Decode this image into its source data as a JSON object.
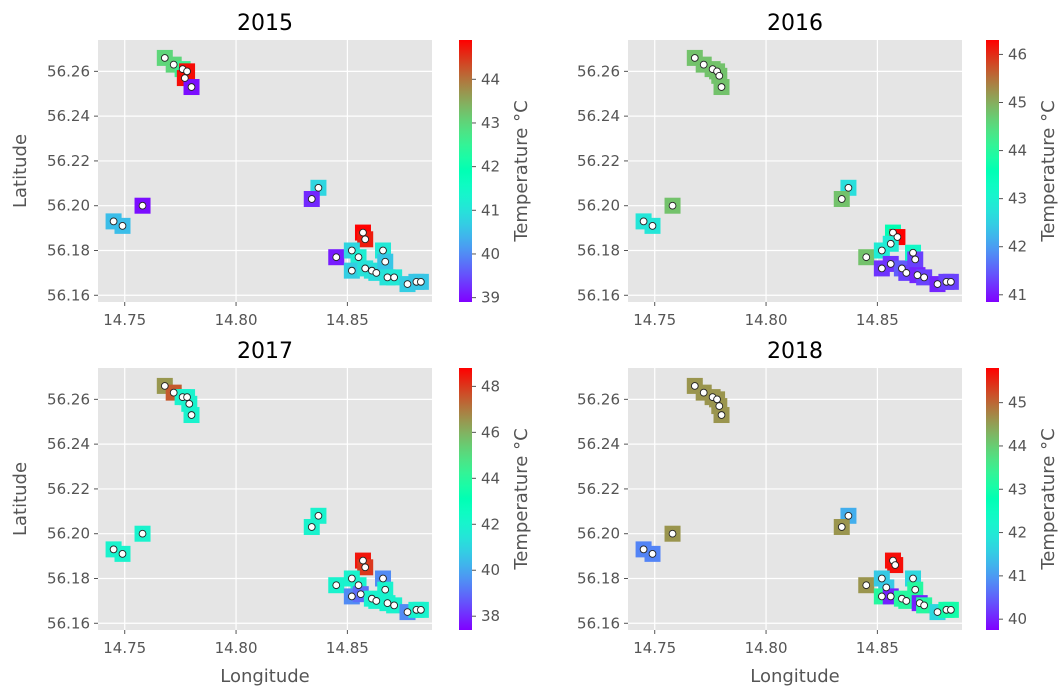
{
  "figure": {
    "xlabel": "Longitude",
    "ylabel": "Latitude",
    "colorbar_label": "Temperature °C",
    "xlim": [
      14.738,
      14.888
    ],
    "ylim": [
      56.157,
      56.274
    ],
    "x_ticks": [
      14.75,
      14.8,
      14.85
    ],
    "x_tick_labels": [
      "14.75",
      "14.80",
      "14.85"
    ],
    "y_ticks": [
      56.16,
      56.18,
      56.2,
      56.22,
      56.24,
      56.26
    ],
    "y_tick_labels": [
      "56.16",
      "56.18",
      "56.20",
      "56.22",
      "56.24",
      "56.26"
    ],
    "colormap": "rainbow",
    "panel_bg": "#e5e5e5",
    "grid_color": "#ffffff",
    "grid": true
  },
  "panels": [
    {
      "title": "2015",
      "colorbar": {
        "min": 38.9,
        "max": 44.9,
        "ticks": [
          39,
          40,
          41,
          42,
          43,
          44
        ],
        "tick_labels": [
          "39",
          "40",
          "41",
          "42",
          "43",
          "44"
        ]
      }
    },
    {
      "title": "2016",
      "colorbar": {
        "min": 40.85,
        "max": 46.3,
        "ticks": [
          41,
          42,
          43,
          44,
          45,
          46
        ],
        "tick_labels": [
          "41",
          "42",
          "43",
          "44",
          "45",
          "46"
        ]
      }
    },
    {
      "title": "2017",
      "colorbar": {
        "min": 37.4,
        "max": 48.8,
        "ticks": [
          38,
          40,
          42,
          44,
          46,
          48
        ],
        "tick_labels": [
          "38",
          "40",
          "42",
          "44",
          "46",
          "48"
        ]
      }
    },
    {
      "title": "2018",
      "colorbar": {
        "min": 39.75,
        "max": 45.8,
        "ticks": [
          40,
          41,
          42,
          43,
          44,
          45
        ],
        "tick_labels": [
          "40",
          "41",
          "42",
          "43",
          "44",
          "45"
        ]
      }
    }
  ],
  "chart_data": [
    {
      "type": "scatter",
      "title": "2015",
      "xlabel": "",
      "ylabel": "Latitude",
      "color_label": "Temperature °C",
      "xlim": [
        14.738,
        14.888
      ],
      "ylim": [
        56.157,
        56.274
      ],
      "points": [
        {
          "x": 14.768,
          "y": 56.266,
          "t": 43.0
        },
        {
          "x": 14.772,
          "y": 56.263,
          "t": 43.0
        },
        {
          "x": 14.776,
          "y": 56.261,
          "t": 42.6
        },
        {
          "x": 14.778,
          "y": 56.26,
          "t": 44.8
        },
        {
          "x": 14.777,
          "y": 56.257,
          "t": 44.8
        },
        {
          "x": 14.78,
          "y": 56.253,
          "t": 39.0
        },
        {
          "x": 14.745,
          "y": 56.193,
          "t": 40.5
        },
        {
          "x": 14.749,
          "y": 56.191,
          "t": 40.5
        },
        {
          "x": 14.758,
          "y": 56.2,
          "t": 39.0
        },
        {
          "x": 14.837,
          "y": 56.208,
          "t": 40.8
        },
        {
          "x": 14.834,
          "y": 56.203,
          "t": 39.2
        },
        {
          "x": 14.845,
          "y": 56.177,
          "t": 39.1
        },
        {
          "x": 14.857,
          "y": 56.188,
          "t": 44.9
        },
        {
          "x": 14.858,
          "y": 56.185,
          "t": 44.7
        },
        {
          "x": 14.852,
          "y": 56.18,
          "t": 40.8
        },
        {
          "x": 14.855,
          "y": 56.177,
          "t": 41.2
        },
        {
          "x": 14.852,
          "y": 56.171,
          "t": 40.7
        },
        {
          "x": 14.858,
          "y": 56.172,
          "t": 41.0
        },
        {
          "x": 14.861,
          "y": 56.171,
          "t": 41.0
        },
        {
          "x": 14.863,
          "y": 56.17,
          "t": 40.9
        },
        {
          "x": 14.866,
          "y": 56.18,
          "t": 41.1
        },
        {
          "x": 14.867,
          "y": 56.175,
          "t": 40.6
        },
        {
          "x": 14.868,
          "y": 56.168,
          "t": 41.0
        },
        {
          "x": 14.871,
          "y": 56.168,
          "t": 41.1
        },
        {
          "x": 14.877,
          "y": 56.165,
          "t": 40.7
        },
        {
          "x": 14.881,
          "y": 56.166,
          "t": 40.6
        },
        {
          "x": 14.883,
          "y": 56.166,
          "t": 40.6
        }
      ]
    },
    {
      "type": "scatter",
      "title": "2016",
      "xlabel": "",
      "ylabel": "",
      "color_label": "Temperature °C",
      "xlim": [
        14.738,
        14.888
      ],
      "ylim": [
        56.157,
        56.274
      ],
      "points": [
        {
          "x": 14.768,
          "y": 56.266,
          "t": 44.8
        },
        {
          "x": 14.772,
          "y": 56.263,
          "t": 44.8
        },
        {
          "x": 14.776,
          "y": 56.261,
          "t": 44.8
        },
        {
          "x": 14.778,
          "y": 56.26,
          "t": 44.8
        },
        {
          "x": 14.779,
          "y": 56.258,
          "t": 44.8
        },
        {
          "x": 14.78,
          "y": 56.253,
          "t": 44.8
        },
        {
          "x": 14.745,
          "y": 56.193,
          "t": 42.8
        },
        {
          "x": 14.749,
          "y": 56.191,
          "t": 42.8
        },
        {
          "x": 14.758,
          "y": 56.2,
          "t": 44.8
        },
        {
          "x": 14.837,
          "y": 56.208,
          "t": 42.7
        },
        {
          "x": 14.834,
          "y": 56.203,
          "t": 44.8
        },
        {
          "x": 14.845,
          "y": 56.177,
          "t": 44.8
        },
        {
          "x": 14.857,
          "y": 56.188,
          "t": 43.6
        },
        {
          "x": 14.859,
          "y": 56.186,
          "t": 46.3
        },
        {
          "x": 14.856,
          "y": 56.183,
          "t": 42.9
        },
        {
          "x": 14.852,
          "y": 56.18,
          "t": 42.9
        },
        {
          "x": 14.852,
          "y": 56.172,
          "t": 41.2
        },
        {
          "x": 14.856,
          "y": 56.174,
          "t": 41.2
        },
        {
          "x": 14.861,
          "y": 56.172,
          "t": 41.5
        },
        {
          "x": 14.863,
          "y": 56.17,
          "t": 41.3
        },
        {
          "x": 14.866,
          "y": 56.179,
          "t": 43.2
        },
        {
          "x": 14.867,
          "y": 56.176,
          "t": 41.3
        },
        {
          "x": 14.868,
          "y": 56.169,
          "t": 41.1
        },
        {
          "x": 14.871,
          "y": 56.168,
          "t": 41.3
        },
        {
          "x": 14.877,
          "y": 56.165,
          "t": 41.1
        },
        {
          "x": 14.881,
          "y": 56.166,
          "t": 41.3
        },
        {
          "x": 14.883,
          "y": 56.166,
          "t": 41.3
        }
      ]
    },
    {
      "type": "scatter",
      "title": "2017",
      "xlabel": "Longitude",
      "ylabel": "Latitude",
      "color_label": "Temperature °C",
      "xlim": [
        14.738,
        14.888
      ],
      "ylim": [
        56.157,
        56.274
      ],
      "points": [
        {
          "x": 14.768,
          "y": 56.266,
          "t": 46.5
        },
        {
          "x": 14.772,
          "y": 56.263,
          "t": 47.5
        },
        {
          "x": 14.776,
          "y": 56.261,
          "t": 42.0
        },
        {
          "x": 14.778,
          "y": 56.261,
          "t": 42.0
        },
        {
          "x": 14.779,
          "y": 56.258,
          "t": 42.0
        },
        {
          "x": 14.78,
          "y": 56.253,
          "t": 42.0
        },
        {
          "x": 14.745,
          "y": 56.193,
          "t": 42.0
        },
        {
          "x": 14.749,
          "y": 56.191,
          "t": 42.0
        },
        {
          "x": 14.758,
          "y": 56.2,
          "t": 42.0
        },
        {
          "x": 14.837,
          "y": 56.208,
          "t": 42.0
        },
        {
          "x": 14.834,
          "y": 56.203,
          "t": 42.0
        },
        {
          "x": 14.845,
          "y": 56.177,
          "t": 42.0
        },
        {
          "x": 14.857,
          "y": 56.188,
          "t": 48.5
        },
        {
          "x": 14.858,
          "y": 56.185,
          "t": 48.0
        },
        {
          "x": 14.852,
          "y": 56.18,
          "t": 42.0
        },
        {
          "x": 14.855,
          "y": 56.177,
          "t": 42.0
        },
        {
          "x": 14.852,
          "y": 56.172,
          "t": 39.5
        },
        {
          "x": 14.856,
          "y": 56.173,
          "t": 39.0
        },
        {
          "x": 14.861,
          "y": 56.171,
          "t": 42.0
        },
        {
          "x": 14.863,
          "y": 56.17,
          "t": 42.0
        },
        {
          "x": 14.866,
          "y": 56.18,
          "t": 39.5
        },
        {
          "x": 14.867,
          "y": 56.175,
          "t": 42.0
        },
        {
          "x": 14.868,
          "y": 56.169,
          "t": 42.0
        },
        {
          "x": 14.871,
          "y": 56.168,
          "t": 42.0
        },
        {
          "x": 14.877,
          "y": 56.165,
          "t": 39.5
        },
        {
          "x": 14.881,
          "y": 56.166,
          "t": 42.0
        },
        {
          "x": 14.883,
          "y": 56.166,
          "t": 42.0
        }
      ]
    },
    {
      "type": "scatter",
      "title": "2018",
      "xlabel": "Longitude",
      "ylabel": "",
      "color_label": "Temperature °C",
      "xlim": [
        14.738,
        14.888
      ],
      "ylim": [
        56.157,
        56.274
      ],
      "points": [
        {
          "x": 14.768,
          "y": 56.266,
          "t": 44.6
        },
        {
          "x": 14.772,
          "y": 56.263,
          "t": 44.6
        },
        {
          "x": 14.776,
          "y": 56.261,
          "t": 44.6
        },
        {
          "x": 14.778,
          "y": 56.26,
          "t": 44.6
        },
        {
          "x": 14.779,
          "y": 56.257,
          "t": 44.6
        },
        {
          "x": 14.78,
          "y": 56.253,
          "t": 44.6
        },
        {
          "x": 14.745,
          "y": 56.193,
          "t": 40.8
        },
        {
          "x": 14.749,
          "y": 56.191,
          "t": 40.8
        },
        {
          "x": 14.758,
          "y": 56.2,
          "t": 44.6
        },
        {
          "x": 14.837,
          "y": 56.208,
          "t": 41.2
        },
        {
          "x": 14.834,
          "y": 56.203,
          "t": 44.6
        },
        {
          "x": 14.845,
          "y": 56.177,
          "t": 44.6
        },
        {
          "x": 14.857,
          "y": 56.188,
          "t": 45.7
        },
        {
          "x": 14.858,
          "y": 56.186,
          "t": 45.7
        },
        {
          "x": 14.852,
          "y": 56.18,
          "t": 41.5
        },
        {
          "x": 14.854,
          "y": 56.176,
          "t": 41.5
        },
        {
          "x": 14.852,
          "y": 56.172,
          "t": 43.2
        },
        {
          "x": 14.856,
          "y": 56.172,
          "t": 40.0
        },
        {
          "x": 14.861,
          "y": 56.171,
          "t": 43.2
        },
        {
          "x": 14.863,
          "y": 56.17,
          "t": 43.2
        },
        {
          "x": 14.866,
          "y": 56.18,
          "t": 41.7
        },
        {
          "x": 14.867,
          "y": 56.175,
          "t": 43.2
        },
        {
          "x": 14.869,
          "y": 56.169,
          "t": 40.0
        },
        {
          "x": 14.871,
          "y": 56.168,
          "t": 43.2
        },
        {
          "x": 14.877,
          "y": 56.165,
          "t": 41.7
        },
        {
          "x": 14.881,
          "y": 56.166,
          "t": 43.0
        },
        {
          "x": 14.883,
          "y": 56.166,
          "t": 43.0
        }
      ]
    }
  ]
}
